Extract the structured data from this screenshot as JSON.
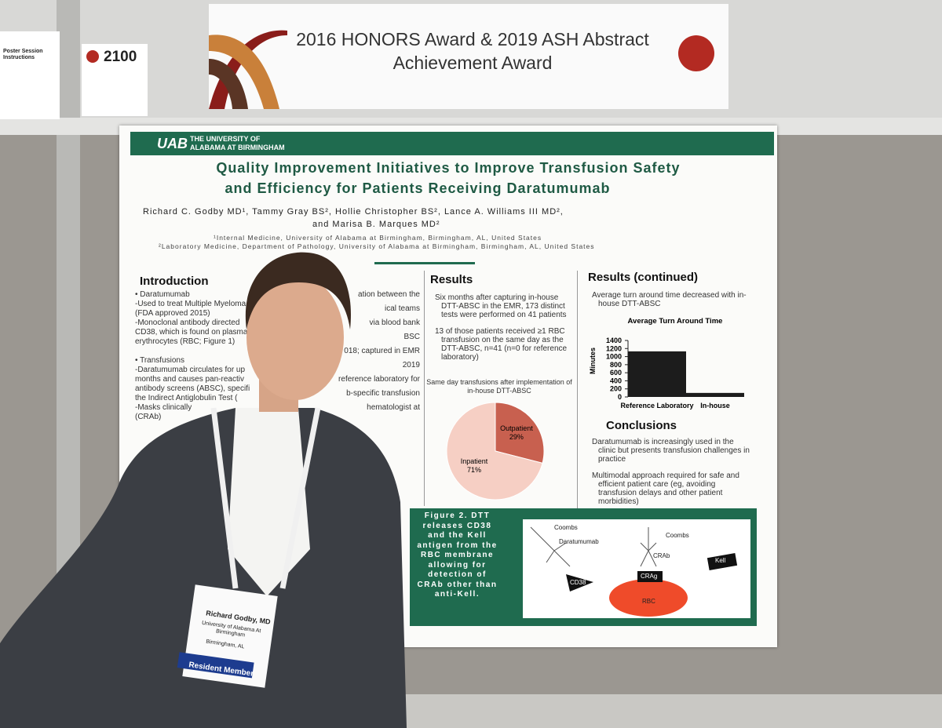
{
  "banner": {
    "booth_number": "2100",
    "title_line1": "2016 HONORS Award & 2019 ASH Abstract",
    "title_line2": "Achievement Award",
    "side_heading": "Poster Session Instructions"
  },
  "poster": {
    "logo": "UAB",
    "institution_line1": "THE UNIVERSITY OF",
    "institution_line2": "ALABAMA AT BIRMINGHAM",
    "title_line1": "Quality Improvement Initiatives to Improve Transfusion Safety",
    "title_line2": "and Efficiency for Patients Receiving Daratumumab",
    "authors_line1": "Richard C. Godby MD¹, Tammy Gray BS², Hollie Christopher BS², Lance A. Williams III MD²,",
    "authors_line2": "and Marisa B. Marques MD²",
    "affiliation1": "¹Internal Medicine, University of Alabama at Birmingham, Birmingham, AL, United States",
    "affiliation2": "²Laboratory Medicine, Department of Pathology, University of Alabama at Birmingham, Birmingham, AL, United States",
    "introduction": {
      "heading": "Introduction",
      "lines": [
        "• Daratumumab",
        "-Used to treat Multiple Myeloma",
        "(FDA approved 2015)",
        "-Monoclonal antibody directed",
        "CD38, which is found on plasma c",
        "erythrocytes (RBC; Figure 1)",
        "",
        "• Transfusions",
        "-Daratumumab circulates for up",
        "months and causes pan-reactiv",
        "antibody screens (ABSC), specifi",
        "the Indirect Antiglobulin Test (",
        "-Masks clinically",
        "(CRAb)"
      ]
    },
    "middle_fragments": [
      "ation between the",
      "ical teams",
      "via blood bank",
      "BSC",
      "018; captured in EMR",
      "2019",
      "reference laboratory for",
      "b-specific transfusion",
      "hematologist at"
    ],
    "results": {
      "heading": "Results",
      "bullets": [
        "Six months after capturing in-house DTT-ABSC in the EMR,  173 distinct tests were performed on 41 patients",
        "13 of those patients received ≥1 RBC transfusion on the same day as the DTT-ABSC, n=41 (n=0 for reference laboratory)"
      ]
    },
    "pie_chart": {
      "title_line1": "Same day transfusions after implementation of",
      "title_line2": "in-house DTT-ABSC",
      "categories": [
        "Outpatient",
        "Inpatient"
      ],
      "values": [
        29,
        71
      ],
      "value_labels": [
        "29%",
        "71%"
      ],
      "colors": [
        "#c8604f",
        "#f6cfc4"
      ]
    },
    "results_continued": {
      "heading": "Results (continued)",
      "bullets": [
        "Average turn around time decreased with in-house DTT-ABSC"
      ]
    },
    "bar_chart": {
      "title": "Average Turn Around Time",
      "y_label": "Minutes",
      "categories": [
        "Reference Laboratory",
        "In-house"
      ],
      "values": [
        1130,
        100
      ],
      "color": "#1c1c1c",
      "ylim": [
        0,
        1400
      ],
      "yticks": [
        0,
        200,
        400,
        600,
        800,
        1000,
        1200,
        1400
      ]
    },
    "conclusions": {
      "heading": "Conclusions",
      "bullets": [
        "Daratumumab is increasingly used in the clinic but presents transfusion challenges in practice",
        "Multimodal approach required for safe and efficient patient care (eg, avoiding transfusion delays and other patient morbidities)"
      ]
    },
    "figure2": {
      "caption": "Figure 2. DTT releases CD38 and the Kell antigen from the RBC membrane allowing for detection of CRAb other than anti-Kell.",
      "labels": {
        "coombs_left": "Coombs",
        "daratumumab": "Daratumumab",
        "cd38": "CD38",
        "coombs_right": "Coombs",
        "crab": "CRAb",
        "crag": "CRAg",
        "kell": "Kell",
        "rbc": "RBC"
      }
    }
  },
  "badge": {
    "name": "Richard Godby, MD",
    "affiliation": "University of Alabama At Birmingham",
    "city": "Birmingham, AL",
    "member_type": "Resident Member"
  }
}
